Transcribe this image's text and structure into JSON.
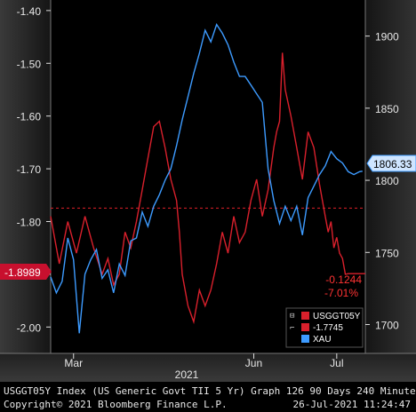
{
  "chart_data": {
    "type": "line",
    "left_axis": {
      "ticks": [
        -1.4,
        -1.5,
        -1.6,
        -1.7,
        -1.8,
        -1.9,
        -2.0
      ],
      "tick_labels": [
        "-1.40",
        "-1.50",
        "-1.60",
        "-1.70",
        "-1.80",
        "-1.90",
        "-2.00"
      ],
      "range": [
        -2.05,
        -1.38
      ]
    },
    "right_axis": {
      "ticks": [
        1700,
        1750,
        1800,
        1850,
        1900
      ],
      "tick_labels": [
        "1700",
        "1750",
        "1800",
        "1850",
        "1900"
      ],
      "range": [
        1680,
        1925
      ]
    },
    "x_tick_labels": [
      "Mar",
      "Jun",
      "Jul"
    ],
    "year_label": "2021",
    "reference_line": {
      "value": -1.7745,
      "axis": "left",
      "style": "dashed",
      "color": "#e0202a"
    },
    "series": [
      {
        "name": "USGGT05Y",
        "axis": "left",
        "color": "#d9202c",
        "last_label": "-1.8989",
        "change_label": "-0.1244",
        "change_pct_label": "-7.01%",
        "points": [
          [
            0,
            -1.79
          ],
          [
            3,
            -1.88
          ],
          [
            6,
            -1.8
          ],
          [
            9,
            -1.86
          ],
          [
            12,
            -1.79
          ],
          [
            15,
            -1.85
          ],
          [
            18,
            -1.9
          ],
          [
            20,
            -1.87
          ],
          [
            22,
            -1.92
          ],
          [
            24,
            -1.9
          ],
          [
            26,
            -1.82
          ],
          [
            28,
            -1.85
          ],
          [
            30,
            -1.8
          ],
          [
            32,
            -1.74
          ],
          [
            34,
            -1.68
          ],
          [
            36,
            -1.62
          ],
          [
            38,
            -1.61
          ],
          [
            40,
            -1.66
          ],
          [
            42,
            -1.72
          ],
          [
            44,
            -1.76
          ],
          [
            45,
            -1.82
          ],
          [
            46,
            -1.9
          ],
          [
            48,
            -1.96
          ],
          [
            50,
            -1.99
          ],
          [
            52,
            -1.93
          ],
          [
            54,
            -1.96
          ],
          [
            56,
            -1.93
          ],
          [
            58,
            -1.88
          ],
          [
            60,
            -1.82
          ],
          [
            62,
            -1.86
          ],
          [
            64,
            -1.79
          ],
          [
            66,
            -1.84
          ],
          [
            68,
            -1.82
          ],
          [
            70,
            -1.76
          ],
          [
            72,
            -1.72
          ],
          [
            74,
            -1.79
          ],
          [
            76,
            -1.74
          ],
          [
            78,
            -1.66
          ],
          [
            79,
            -1.63
          ],
          [
            80,
            -1.61
          ],
          [
            81,
            -1.48
          ],
          [
            82,
            -1.55
          ],
          [
            84,
            -1.6
          ],
          [
            86,
            -1.66
          ],
          [
            88,
            -1.72
          ],
          [
            90,
            -1.63
          ],
          [
            92,
            -1.66
          ],
          [
            94,
            -1.73
          ],
          [
            95,
            -1.76
          ],
          [
            96,
            -1.79
          ],
          [
            97,
            -1.82
          ],
          [
            98,
            -1.8
          ],
          [
            99,
            -1.85
          ],
          [
            100,
            -1.83
          ],
          [
            101,
            -1.86
          ],
          [
            102,
            -1.87
          ],
          [
            103,
            -1.9
          ],
          [
            104,
            -1.8989
          ],
          [
            108,
            -1.8989
          ],
          [
            110,
            -1.8989
          ]
        ]
      },
      {
        "name": "XAU",
        "axis": "right",
        "color": "#3d9bff",
        "last_label": "1806.33",
        "points": [
          [
            0,
            1733
          ],
          [
            2,
            1722
          ],
          [
            4,
            1730
          ],
          [
            6,
            1760
          ],
          [
            8,
            1745
          ],
          [
            10,
            1694
          ],
          [
            12,
            1735
          ],
          [
            14,
            1745
          ],
          [
            16,
            1752
          ],
          [
            18,
            1732
          ],
          [
            20,
            1738
          ],
          [
            22,
            1722
          ],
          [
            24,
            1742
          ],
          [
            26,
            1734
          ],
          [
            28,
            1758
          ],
          [
            30,
            1760
          ],
          [
            32,
            1778
          ],
          [
            34,
            1768
          ],
          [
            36,
            1782
          ],
          [
            38,
            1790
          ],
          [
            40,
            1800
          ],
          [
            42,
            1808
          ],
          [
            44,
            1824
          ],
          [
            46,
            1842
          ],
          [
            48,
            1858
          ],
          [
            50,
            1874
          ],
          [
            52,
            1888
          ],
          [
            54,
            1904
          ],
          [
            56,
            1896
          ],
          [
            58,
            1908
          ],
          [
            60,
            1902
          ],
          [
            62,
            1894
          ],
          [
            64,
            1882
          ],
          [
            66,
            1872
          ],
          [
            68,
            1872
          ],
          [
            70,
            1866
          ],
          [
            72,
            1860
          ],
          [
            74,
            1854
          ],
          [
            76,
            1808
          ],
          [
            78,
            1786
          ],
          [
            80,
            1770
          ],
          [
            82,
            1782
          ],
          [
            84,
            1772
          ],
          [
            86,
            1782
          ],
          [
            88,
            1762
          ],
          [
            90,
            1788
          ],
          [
            92,
            1796
          ],
          [
            94,
            1804
          ],
          [
            96,
            1810
          ],
          [
            98,
            1820
          ],
          [
            100,
            1815
          ],
          [
            102,
            1812
          ],
          [
            104,
            1806
          ],
          [
            106,
            1804
          ],
          [
            108,
            1806
          ],
          [
            109,
            1806.33
          ]
        ]
      }
    ],
    "legend": {
      "placement": "bottom-right",
      "entries": [
        "USGGT05Y",
        "-1.7745",
        "XAU"
      ]
    }
  },
  "footer": {
    "line1_left": "USGGT05Y Index (US Generic Govt TII 5 Yr) Graph 126 90 Days 240 Minutes",
    "line2_left": "Copyright© 2021 Bloomberg Finance L.P.",
    "line2_right": "26-Jul-2021 11:24:47"
  },
  "colors": {
    "background": "#000000",
    "axis_panel": "#1c1c1c",
    "footer_bg": "#000000",
    "red": "#d9202c",
    "blue": "#3d9bff",
    "grid": "#5a5a5a"
  }
}
